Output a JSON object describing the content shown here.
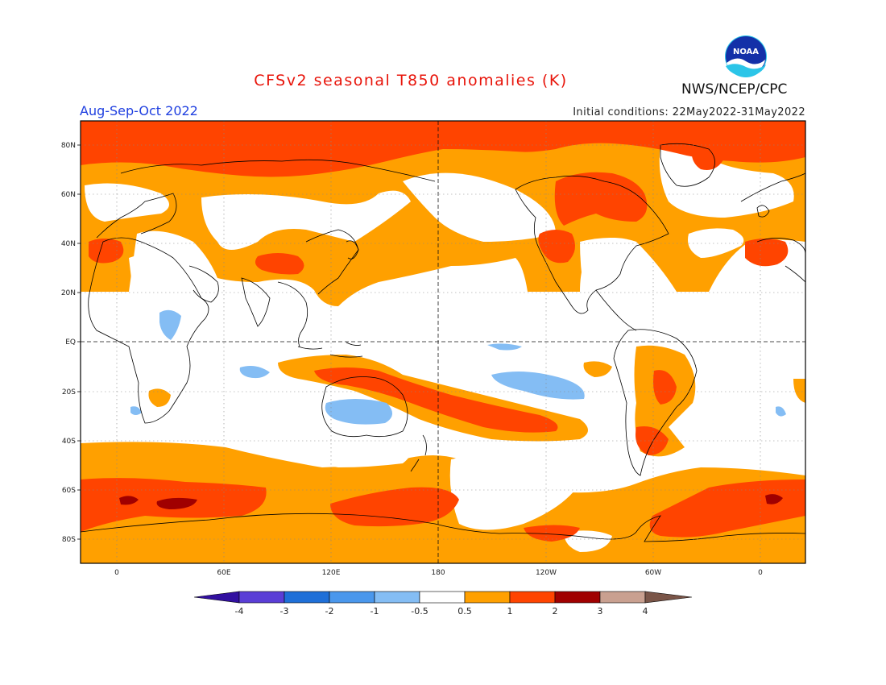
{
  "header": {
    "title": "CFSv2 seasonal T850 anomalies (K)",
    "season": "Aug-Sep-Oct 2022",
    "initial_conditions": "Initial conditions: 22May2022-31May2022",
    "agency": "NWS/NCEP/CPC",
    "logo_text": "NOAA",
    "logo_icon": "noaa-logo-icon"
  },
  "map": {
    "projection": "cylindrical equidistant",
    "central_meridian": "180",
    "lat_ticks": [
      "80N",
      "60N",
      "40N",
      "20N",
      "EQ",
      "20S",
      "40S",
      "60S",
      "80S"
    ],
    "lon_ticks": [
      "0",
      "60E",
      "120E",
      "180",
      "120W",
      "60W",
      "0"
    ],
    "grid": "dotted",
    "reference_lines": "equator and 180 dashed",
    "anomaly_regions": [
      {
        "region": "Arctic 70N-90N",
        "level": "1 to 2"
      },
      {
        "region": "Northern mid-latitudes",
        "level": "0.5 to 1"
      },
      {
        "region": "Central Asia / Iran",
        "level": "1 to 2"
      },
      {
        "region": "Canada / Greenland",
        "level": "1 to 2"
      },
      {
        "region": "Tropical South Pacific band",
        "level": "1 to 2"
      },
      {
        "region": "Brazil / Argentina",
        "level": "1 to 2"
      },
      {
        "region": "Southern Ocean 55S-70S",
        "level": "1 to 3"
      },
      {
        "region": "Central Australia",
        "level": "-1 to -0.5"
      },
      {
        "region": "Eastern Tropical Pacific",
        "level": "-1 to -0.5"
      },
      {
        "region": "East Africa",
        "level": "-1 to -0.5"
      }
    ]
  },
  "colorbar": {
    "labels": [
      "-4",
      "-3",
      "-2",
      "-1",
      "-0.5",
      "0.5",
      "1",
      "2",
      "3",
      "4"
    ],
    "colors": [
      "#3210a0",
      "#5a3ed6",
      "#1e6fd8",
      "#4a97ec",
      "#84bdf4",
      "#ffffff",
      "#ffa000",
      "#ff4400",
      "#a00000",
      "#c9a090",
      "#7a5548"
    ],
    "unit": "K"
  },
  "palette": {
    "light_warm": "#ffa000",
    "warm": "#ff4400",
    "hot": "#a00000",
    "light_cool": "#84bdf4"
  }
}
